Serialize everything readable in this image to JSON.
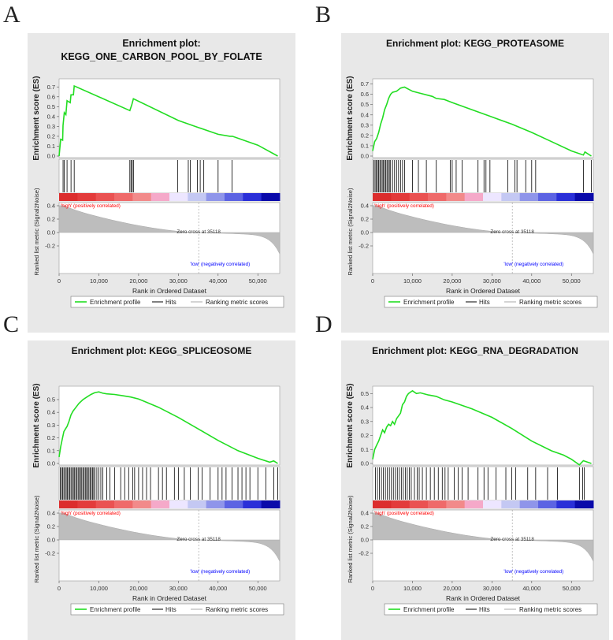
{
  "chart_data": [
    {
      "panel_letter": "A",
      "type": "line",
      "title_lines": [
        "Enrichment plot:",
        "KEGG_ONE_CARBON_POOL_BY_FOLATE"
      ],
      "ylabel": "Enrichment score (ES)",
      "es_ticks": [
        "0.0",
        "0.1",
        "0.2",
        "0.3",
        "0.4",
        "0.5",
        "0.6",
        "0.7"
      ],
      "es_ylim": [
        0,
        0.75
      ],
      "es_points": [
        [
          0,
          0
        ],
        [
          400,
          0.17
        ],
        [
          900,
          0.16
        ],
        [
          1000,
          0.31
        ],
        [
          1300,
          0.44
        ],
        [
          1700,
          0.42
        ],
        [
          2000,
          0.56
        ],
        [
          2800,
          0.54
        ],
        [
          3000,
          0.62
        ],
        [
          3600,
          0.62
        ],
        [
          3800,
          0.71
        ],
        [
          17800,
          0.46
        ],
        [
          18300,
          0.52
        ],
        [
          18700,
          0.58
        ],
        [
          30000,
          0.36
        ],
        [
          35000,
          0.29
        ],
        [
          40000,
          0.22
        ],
        [
          43000,
          0.2
        ],
        [
          43600,
          0.2
        ],
        [
          50000,
          0.11
        ],
        [
          55000,
          0.0
        ]
      ],
      "hits": [
        1000,
        1300,
        2000,
        3000,
        3800,
        17800,
        18100,
        18400,
        18700,
        29800,
        32500,
        33000,
        34800,
        35500,
        36400,
        40000,
        43500
      ]
    },
    {
      "panel_letter": "B",
      "type": "line",
      "title_lines": [
        "Enrichment plot: KEGG_PROTEASOME"
      ],
      "ylabel": "Enrichment score (ES)",
      "es_ticks": [
        "0.0",
        "0.1",
        "0.2",
        "0.3",
        "0.4",
        "0.5",
        "0.6",
        "0.7"
      ],
      "es_ylim": [
        0,
        0.72
      ],
      "es_points": [
        [
          0,
          0.05
        ],
        [
          500,
          0.14
        ],
        [
          1000,
          0.17
        ],
        [
          1500,
          0.23
        ],
        [
          2000,
          0.31
        ],
        [
          2500,
          0.37
        ],
        [
          3000,
          0.45
        ],
        [
          3500,
          0.5
        ],
        [
          4000,
          0.56
        ],
        [
          4500,
          0.6
        ],
        [
          5000,
          0.62
        ],
        [
          6000,
          0.63
        ],
        [
          7000,
          0.66
        ],
        [
          8000,
          0.67
        ],
        [
          10000,
          0.63
        ],
        [
          12000,
          0.61
        ],
        [
          15000,
          0.58
        ],
        [
          16000,
          0.56
        ],
        [
          18000,
          0.55
        ],
        [
          20000,
          0.52
        ],
        [
          25000,
          0.45
        ],
        [
          30000,
          0.38
        ],
        [
          35000,
          0.31
        ],
        [
          40000,
          0.23
        ],
        [
          45000,
          0.14
        ],
        [
          50000,
          0.05
        ],
        [
          53000,
          0.01
        ],
        [
          53400,
          0.04
        ],
        [
          55000,
          0.0
        ]
      ],
      "hits": [
        300,
        600,
        900,
        1200,
        1500,
        1800,
        2100,
        2400,
        2700,
        3000,
        3300,
        3600,
        3900,
        4200,
        4500,
        5000,
        5500,
        6000,
        6500,
        7000,
        7500,
        8000,
        10000,
        11500,
        13500,
        16000,
        19500,
        20000,
        21000,
        22500,
        26500,
        28000,
        28500,
        29500,
        34000,
        35800,
        36300,
        38500,
        40000,
        41000,
        53000,
        55000
      ]
    },
    {
      "panel_letter": "C",
      "type": "line",
      "title_lines": [
        "Enrichment plot: KEGG_SPLICEOSOME"
      ],
      "ylabel": "Enrichment score (ES)",
      "es_ticks": [
        "0.0",
        "0.1",
        "0.2",
        "0.3",
        "0.4",
        "0.5"
      ],
      "es_ylim": [
        0,
        0.58
      ],
      "es_points": [
        [
          0,
          0.05
        ],
        [
          400,
          0.13
        ],
        [
          800,
          0.19
        ],
        [
          1200,
          0.25
        ],
        [
          1600,
          0.27
        ],
        [
          2000,
          0.29
        ],
        [
          2500,
          0.33
        ],
        [
          3000,
          0.38
        ],
        [
          3500,
          0.41
        ],
        [
          4000,
          0.43
        ],
        [
          5000,
          0.47
        ],
        [
          6000,
          0.5
        ],
        [
          7000,
          0.52
        ],
        [
          8000,
          0.54
        ],
        [
          9000,
          0.555
        ],
        [
          10000,
          0.56
        ],
        [
          11000,
          0.55
        ],
        [
          12000,
          0.545
        ],
        [
          14000,
          0.54
        ],
        [
          16000,
          0.53
        ],
        [
          18000,
          0.52
        ],
        [
          20000,
          0.505
        ],
        [
          25000,
          0.44
        ],
        [
          30000,
          0.36
        ],
        [
          35000,
          0.27
        ],
        [
          40000,
          0.18
        ],
        [
          45000,
          0.1
        ],
        [
          50000,
          0.04
        ],
        [
          53000,
          0.01
        ],
        [
          54000,
          0.02
        ],
        [
          55000,
          0.0
        ]
      ],
      "hits": [
        300,
        600,
        900,
        1200,
        1500,
        1800,
        2100,
        2400,
        2700,
        3000,
        3300,
        3600,
        3900,
        4200,
        4500,
        4800,
        5100,
        5400,
        5700,
        6000,
        6300,
        6600,
        6900,
        7200,
        7500,
        7800,
        8100,
        8400,
        8700,
        9000,
        9500,
        10000,
        10500,
        11000,
        12000,
        12800,
        14000,
        15500,
        16500,
        17500,
        18500,
        19000,
        20000,
        21000,
        22000,
        23000,
        25000,
        26000,
        27000,
        29000,
        30000,
        31500,
        33000,
        35000,
        36000,
        38000,
        40000,
        41000,
        42000,
        43500,
        45000,
        46000,
        47000,
        48000,
        50000,
        52000,
        54000,
        55000
      ]
    },
    {
      "panel_letter": "D",
      "type": "line",
      "title_lines": [
        "Enrichment plot: KEGG_RNA_DEGRADATION"
      ],
      "ylabel": "Enrichment score (ES)",
      "es_ticks": [
        "0.0",
        "0.1",
        "0.2",
        "0.3",
        "0.4",
        "0.5"
      ],
      "es_ylim": [
        0,
        0.53
      ],
      "es_points": [
        [
          0,
          0.03
        ],
        [
          500,
          0.1
        ],
        [
          1000,
          0.13
        ],
        [
          1500,
          0.16
        ],
        [
          2000,
          0.2
        ],
        [
          2500,
          0.24
        ],
        [
          3000,
          0.22
        ],
        [
          3500,
          0.26
        ],
        [
          4000,
          0.28
        ],
        [
          4500,
          0.27
        ],
        [
          5000,
          0.3
        ],
        [
          5500,
          0.28
        ],
        [
          6000,
          0.32
        ],
        [
          7000,
          0.36
        ],
        [
          7500,
          0.42
        ],
        [
          8000,
          0.44
        ],
        [
          8500,
          0.48
        ],
        [
          9000,
          0.5
        ],
        [
          9500,
          0.51
        ],
        [
          10000,
          0.52
        ],
        [
          11000,
          0.5
        ],
        [
          12000,
          0.505
        ],
        [
          14000,
          0.49
        ],
        [
          16000,
          0.48
        ],
        [
          18000,
          0.455
        ],
        [
          20000,
          0.44
        ],
        [
          25000,
          0.39
        ],
        [
          30000,
          0.33
        ],
        [
          35000,
          0.25
        ],
        [
          40000,
          0.16
        ],
        [
          45000,
          0.09
        ],
        [
          48000,
          0.06
        ],
        [
          50000,
          0.03
        ],
        [
          52000,
          -0.01
        ],
        [
          53000,
          0.02
        ],
        [
          55000,
          0.0
        ]
      ],
      "hits": [
        700,
        1200,
        1700,
        2200,
        2700,
        3200,
        3700,
        4200,
        4700,
        5200,
        5700,
        6200,
        6700,
        7200,
        7700,
        8200,
        8700,
        9200,
        9700,
        10500,
        11200,
        11700,
        12500,
        13500,
        14500,
        15500,
        16500,
        17500,
        18200,
        19000,
        20500,
        21500,
        22500,
        24000,
        26500,
        28000,
        29000,
        31000,
        33500,
        35000,
        36000,
        39000,
        41000,
        44000,
        46500,
        52000,
        52800,
        53200
      ]
    }
  ],
  "common": {
    "ranked_ylabel": "Ranked list metric (Signal2Noise)",
    "ranked_ticks": [
      "0.4",
      "0.2",
      "0.0",
      "-0.2"
    ],
    "xlabel": "Rank in Ordered Dataset",
    "x_ticks": [
      "0",
      "10,000",
      "20,000",
      "30,000",
      "40,000",
      "50,000"
    ],
    "x_tick_values": [
      0,
      10000,
      20000,
      30000,
      40000,
      50000
    ],
    "x_max": 55500,
    "zero_cross_label": "Zero cross at 35118",
    "zero_cross": 35118,
    "high_label": "'high' (positively correlated)",
    "low_label": "'low' (negatively correlated)",
    "legend": {
      "enrichment": "Enrichment profile",
      "hits": "Hits",
      "ranking": "Ranking metric scores"
    },
    "colors": {
      "profile": "#22dd22",
      "hits": "#000000",
      "high": "#ff0000",
      "low": "#0000ff",
      "ranking": "#aaaaaa",
      "panel_bg": "#e8e8e8"
    },
    "heat_colors": [
      "#dc2d2d",
      "#e33b3b",
      "#ea5252",
      "#ef6a6a",
      "#f28a8a",
      "#f5a9c9",
      "#ede6ff",
      "#c4c8f3",
      "#8f95ea",
      "#5c63e3",
      "#2a2fd8",
      "#0a0aaa"
    ]
  }
}
